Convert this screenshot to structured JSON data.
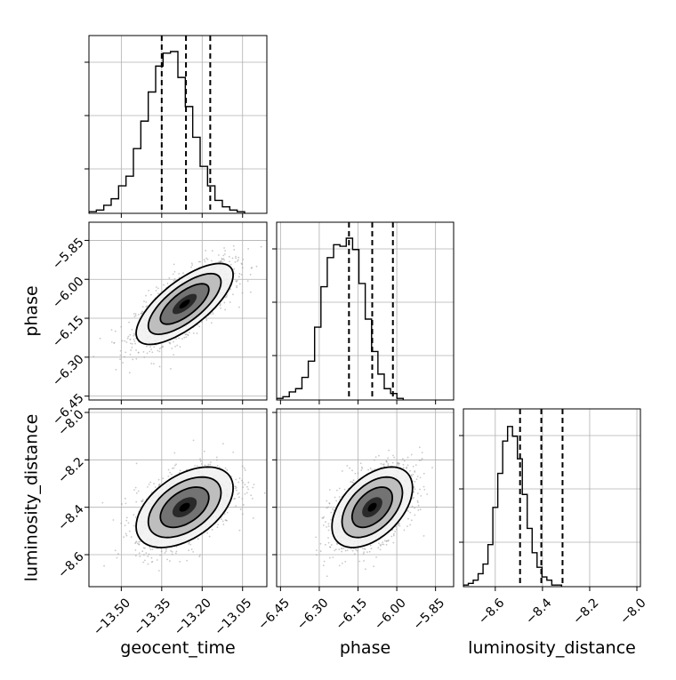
{
  "chart_data": {
    "type": "corner",
    "parameters": [
      "geocent_time",
      "phase",
      "luminosity_distance"
    ],
    "ticks": {
      "geocent_time": {
        "values": [
          -13.5,
          -13.35,
          -13.2,
          -13.05
        ],
        "labels": [
          "−13.50",
          "−13.35",
          "−13.20",
          "−13.05"
        ]
      },
      "phase": {
        "values": [
          -6.45,
          -6.3,
          -6.15,
          -6.0,
          -5.85
        ],
        "labels": [
          "−6.45",
          "−6.30",
          "−6.15",
          "−6.00",
          "−5.85"
        ]
      },
      "luminosity_distance": {
        "values": [
          -8.6,
          -8.4,
          -8.2,
          -8.0
        ],
        "labels": [
          "−8.6",
          "−8.4",
          "−8.2",
          "−8.0"
        ]
      }
    },
    "ranges": {
      "geocent_time": [
        -13.62,
        -12.96
      ],
      "phase": [
        -6.465,
        -5.78
      ],
      "luminosity_distance": [
        -8.735,
        -7.985
      ]
    },
    "quantiles": {
      "geocent_time": [
        -13.35,
        -13.26,
        -13.17
      ],
      "phase": [
        -6.185,
        -6.095,
        -6.015
      ],
      "luminosity_distance": [
        -8.495,
        -8.405,
        -8.315
      ]
    },
    "histograms": {
      "geocent_time": {
        "x_start": -13.62,
        "bin_width": 0.0275,
        "counts": [
          0.01,
          0.02,
          0.05,
          0.09,
          0.17,
          0.23,
          0.4,
          0.57,
          0.75,
          0.91,
          0.99,
          1.0,
          0.84,
          0.66,
          0.47,
          0.29,
          0.17,
          0.08,
          0.04,
          0.02,
          0.01
        ]
      },
      "phase": {
        "x_start": -6.465,
        "bin_width": 0.0245,
        "counts": [
          0.01,
          0.02,
          0.05,
          0.07,
          0.14,
          0.24,
          0.45,
          0.7,
          0.88,
          0.96,
          0.95,
          1.0,
          0.93,
          0.72,
          0.5,
          0.3,
          0.16,
          0.07,
          0.04,
          0.01
        ]
      },
      "luminosity_distance": {
        "x_start": -8.735,
        "bin_width": 0.0208,
        "counts": [
          0.01,
          0.02,
          0.04,
          0.08,
          0.14,
          0.26,
          0.49,
          0.7,
          0.9,
          0.99,
          0.93,
          0.79,
          0.57,
          0.36,
          0.21,
          0.12,
          0.06,
          0.04,
          0.01,
          0.01
        ]
      }
    },
    "correlations": {
      "phase|geocent_time": {
        "mean": [
          -13.265,
          -6.095
        ],
        "sd": [
          0.09,
          0.078
        ],
        "rho": 0.72
      },
      "luminosity_distance|geocent_time": {
        "mean": [
          -13.265,
          -8.4
        ],
        "sd": [
          0.09,
          0.085
        ],
        "rho": 0.48
      },
      "luminosity_distance|phase": {
        "mean": [
          -6.095,
          -8.4
        ],
        "sd": [
          0.078,
          0.085
        ],
        "rho": 0.48
      }
    },
    "contour_levels_sigma": [
      0.5,
      1.0,
      1.5,
      2.0
    ],
    "grid": true,
    "colors": {
      "line": "#000000",
      "grid": "#b0b0b0",
      "scatter": "#9a9a9a",
      "fill_dark": "#000000",
      "fill_light": "#f2f2f2"
    }
  }
}
